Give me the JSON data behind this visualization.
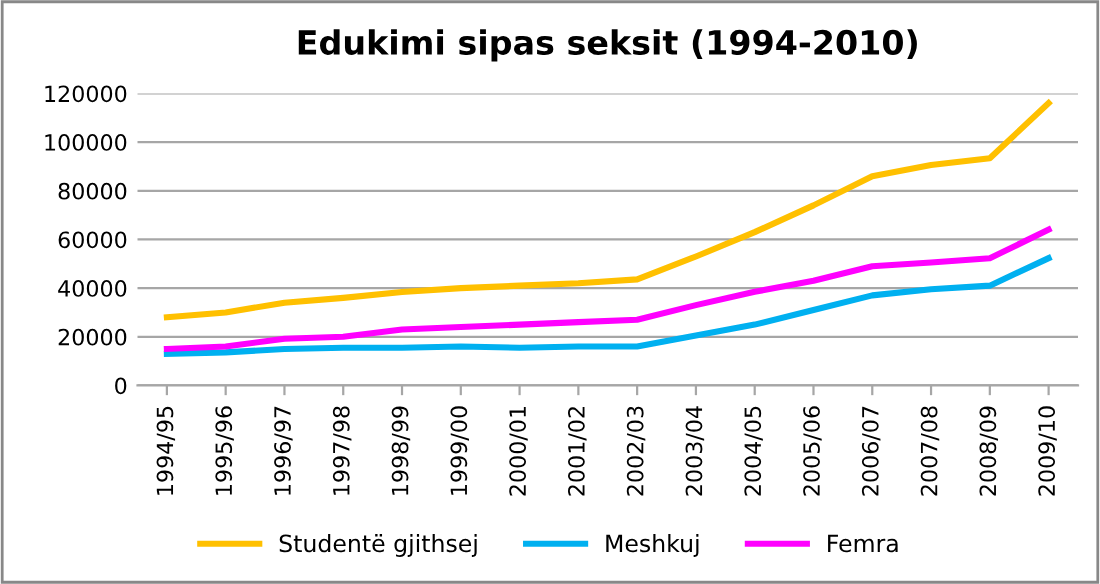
{
  "chart_data": {
    "type": "line",
    "title": "Edukimi sipas seksit (1994-2010)",
    "categories": [
      "1994/95",
      "1995/96",
      "1996/97",
      "1997/98",
      "1998/99",
      "1999/00",
      "2000/01",
      "2001/02",
      "2002/03",
      "2003/04",
      "2004/05",
      "2005/06",
      "2006/07",
      "2007/08",
      "2008/09",
      "2009/10"
    ],
    "series": [
      {
        "name": "Studentë gjithsej",
        "color": "#ffc000",
        "values": [
          28000,
          30000,
          34000,
          36000,
          38400,
          40000,
          41000,
          42000,
          43600,
          53000,
          63000,
          74000,
          86000,
          90600,
          93400,
          116000
        ]
      },
      {
        "name": "Meshkuj",
        "color": "#00b0f0",
        "values": [
          13000,
          13600,
          15000,
          15500,
          15500,
          16000,
          15500,
          16000,
          16000,
          20500,
          25000,
          31000,
          37000,
          39500,
          41000,
          52300
        ]
      },
      {
        "name": "Femra",
        "color": "#ff00ff",
        "values": [
          15000,
          16000,
          19200,
          20000,
          23000,
          24000,
          25000,
          26000,
          27000,
          33000,
          38500,
          43000,
          49000,
          50500,
          52300,
          64000
        ]
      }
    ],
    "ylim": [
      0,
      120000
    ],
    "yticks": [
      0,
      20000,
      40000,
      60000,
      80000,
      100000,
      120000
    ],
    "grid": "y",
    "legend": "bottom",
    "marker": "none",
    "line_style": "solid"
  }
}
